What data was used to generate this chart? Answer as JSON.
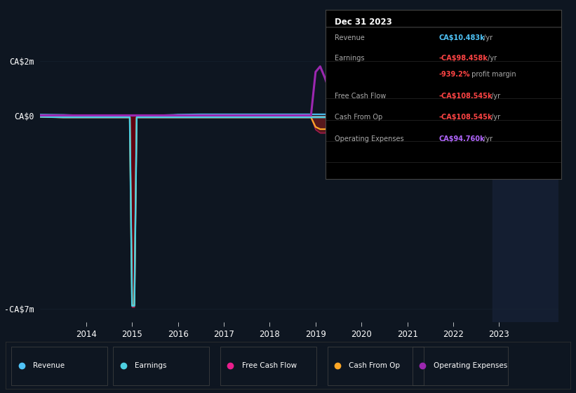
{
  "background_color": "#0e1621",
  "plot_bg_color": "#0e1621",
  "grid_color": "#1a2535",
  "x_ticks": [
    2014,
    2015,
    2016,
    2017,
    2018,
    2019,
    2020,
    2021,
    2022,
    2023
  ],
  "info_box": {
    "date": "Dec 31 2023",
    "rows": [
      {
        "label": "Revenue",
        "val": "CA$10.483k",
        "suffix": " /yr",
        "val_color": "#4fc3f7",
        "suffix_color": "#aaaaaa"
      },
      {
        "label": "Earnings",
        "val": "-CA$98.458k",
        "suffix": " /yr",
        "val_color": "#ff4444",
        "suffix_color": "#aaaaaa"
      },
      {
        "label": "",
        "val": "-939.2%",
        "suffix": " profit margin",
        "val_color": "#ff4444",
        "suffix_color": "#aaaaaa"
      },
      {
        "label": "Free Cash Flow",
        "val": "-CA$108.545k",
        "suffix": " /yr",
        "val_color": "#ff4444",
        "suffix_color": "#aaaaaa"
      },
      {
        "label": "Cash From Op",
        "val": "-CA$108.545k",
        "suffix": " /yr",
        "val_color": "#ff4444",
        "suffix_color": "#aaaaaa"
      },
      {
        "label": "Operating Expenses",
        "val": "CA$94.760k",
        "suffix": " /yr",
        "val_color": "#b266ff",
        "suffix_color": "#aaaaaa"
      }
    ]
  },
  "legend": [
    {
      "label": "Revenue",
      "color": "#4fc3f7"
    },
    {
      "label": "Earnings",
      "color": "#4dd0e1"
    },
    {
      "label": "Free Cash Flow",
      "color": "#e91e8c"
    },
    {
      "label": "Cash From Op",
      "color": "#ffa726"
    },
    {
      "label": "Operating Expenses",
      "color": "#9c27b0"
    }
  ],
  "ylim": [
    -7.5,
    2.5
  ],
  "xlim": [
    2013.0,
    2024.3
  ],
  "shaded_right_start": 2022.85,
  "years": [
    2013.0,
    2013.5,
    2013.9,
    2014.0,
    2014.1,
    2014.5,
    2014.85,
    2014.95,
    2015.0,
    2015.05,
    2015.1,
    2015.5,
    2015.9,
    2016.0,
    2016.5,
    2017.0,
    2017.5,
    2018.0,
    2018.5,
    2018.9,
    2019.0,
    2019.1,
    2019.2,
    2019.4,
    2019.5,
    2019.7,
    2019.9,
    2020.0,
    2020.3,
    2020.5,
    2020.7,
    2021.0,
    2021.3,
    2021.5,
    2021.7,
    2022.0,
    2022.3,
    2022.5,
    2022.7,
    2022.85,
    2023.0,
    2023.3,
    2023.5,
    2023.7,
    2023.9,
    2024.1
  ],
  "revenue": [
    0.05,
    0.04,
    0.02,
    0.01,
    0.005,
    0.005,
    0.005,
    0.005,
    0.005,
    0.005,
    0.01,
    0.02,
    0.04,
    0.05,
    0.06,
    0.06,
    0.06,
    0.06,
    0.06,
    0.06,
    0.06,
    0.06,
    0.06,
    0.06,
    0.06,
    0.06,
    0.06,
    0.06,
    0.06,
    0.06,
    0.06,
    0.06,
    0.06,
    0.06,
    0.06,
    0.06,
    0.04,
    0.04,
    0.04,
    0.04,
    0.01,
    0.01,
    0.01,
    0.01,
    0.01,
    0.01
  ],
  "earnings": [
    -0.03,
    -0.05,
    -0.05,
    -0.05,
    -0.05,
    -0.05,
    -0.05,
    -0.05,
    -6.9,
    -6.9,
    -0.05,
    -0.05,
    -0.05,
    -0.05,
    -0.05,
    -0.05,
    -0.05,
    -0.05,
    -0.05,
    -0.05,
    -0.05,
    -0.05,
    -0.05,
    -0.05,
    -0.05,
    -0.05,
    -0.05,
    -0.05,
    -0.05,
    -0.05,
    -0.05,
    -0.05,
    -0.05,
    -0.05,
    -0.05,
    -0.05,
    -0.05,
    -0.05,
    -0.05,
    -0.05,
    -0.1,
    -0.1,
    -0.1,
    -0.1,
    -0.1,
    -0.1
  ],
  "free_cash_flow": [
    -0.04,
    -0.06,
    -0.06,
    -0.06,
    -0.06,
    -0.06,
    -0.06,
    -0.06,
    -6.95,
    -6.95,
    -0.06,
    -0.06,
    -0.06,
    -0.06,
    -0.06,
    -0.06,
    -0.06,
    -0.06,
    -0.06,
    -0.06,
    -0.5,
    -0.62,
    -0.62,
    -0.57,
    -0.55,
    -0.52,
    -0.5,
    -0.5,
    -0.52,
    -0.52,
    -0.5,
    -0.45,
    -0.46,
    -0.47,
    -0.47,
    -0.45,
    -0.6,
    -0.57,
    -0.57,
    -0.57,
    -0.11,
    -0.11,
    -0.11,
    -0.11,
    -0.11,
    -0.11
  ],
  "cash_from_op": [
    -0.03,
    -0.05,
    -0.05,
    -0.05,
    -0.05,
    -0.05,
    -0.05,
    -0.05,
    -6.88,
    -6.88,
    -0.05,
    -0.05,
    -0.05,
    -0.05,
    -0.05,
    -0.05,
    -0.05,
    -0.05,
    -0.05,
    -0.05,
    -0.4,
    -0.48,
    -0.48,
    -0.44,
    -0.42,
    -0.4,
    -0.38,
    -0.38,
    -0.4,
    -0.4,
    -0.38,
    -0.35,
    -0.36,
    -0.37,
    -0.37,
    -0.35,
    -0.48,
    -0.46,
    -0.46,
    -0.46,
    -0.09,
    -0.09,
    -0.09,
    -0.09,
    -0.09,
    -0.09
  ],
  "operating_expenses": [
    0.02,
    0.02,
    0.02,
    0.02,
    0.02,
    0.02,
    0.02,
    0.02,
    0.02,
    0.02,
    0.02,
    0.02,
    0.02,
    0.02,
    0.02,
    0.02,
    0.02,
    0.02,
    0.02,
    0.02,
    1.6,
    1.8,
    1.4,
    0.45,
    0.42,
    0.4,
    0.4,
    0.4,
    0.45,
    0.48,
    0.45,
    0.38,
    0.38,
    0.38,
    0.35,
    0.35,
    0.3,
    0.28,
    0.25,
    0.2,
    0.09,
    0.09,
    0.09,
    0.09,
    0.09,
    0.09
  ]
}
